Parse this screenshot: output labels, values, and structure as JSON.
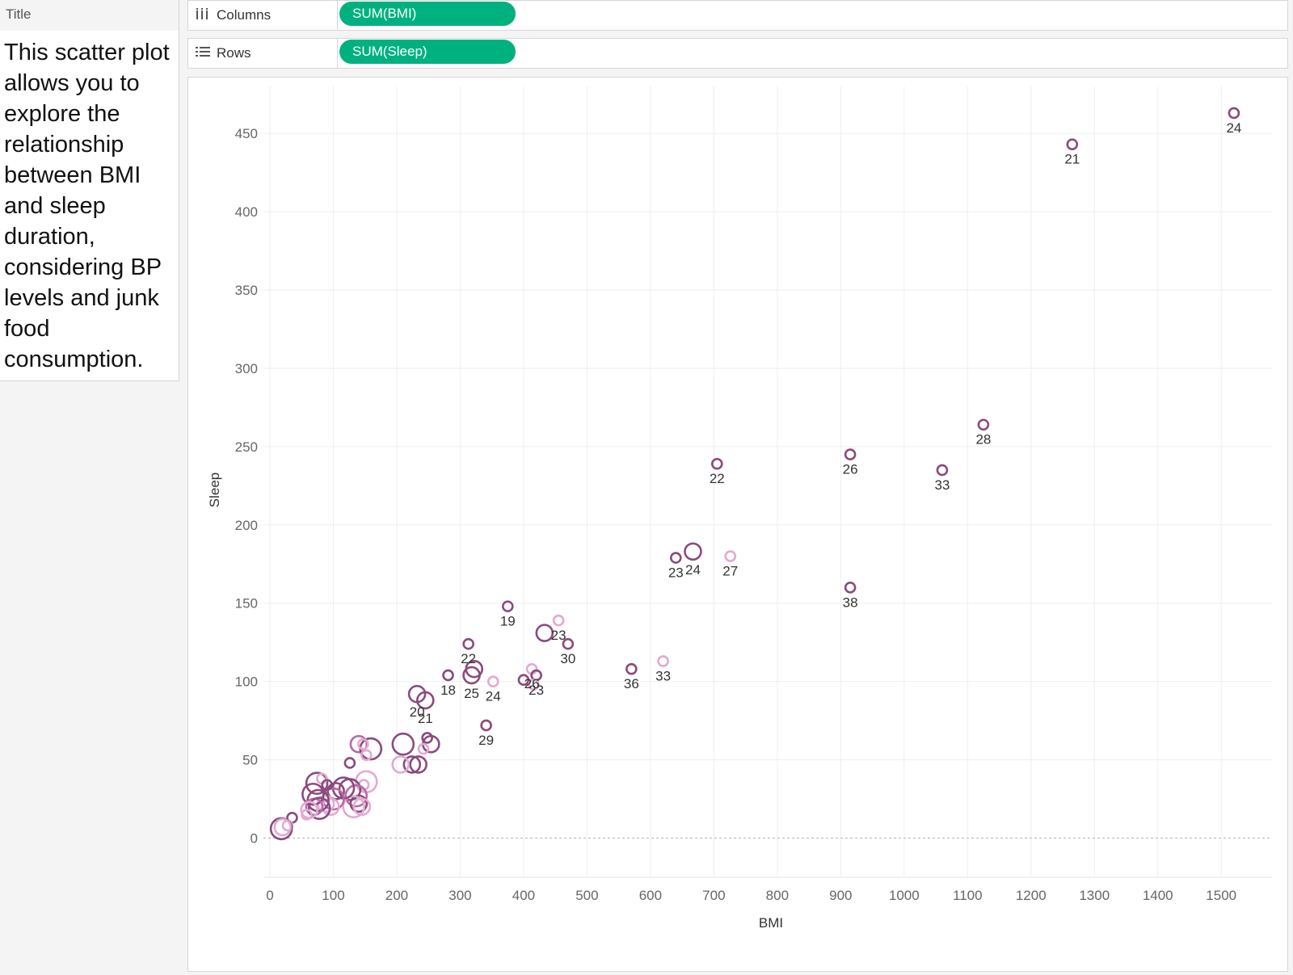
{
  "title_panel": {
    "header": "Title",
    "text": "This scatter plot allows you to explore the relationship between BMI and sleep duration, considering BP levels and junk food consumption."
  },
  "shelves": {
    "columns": {
      "icon": "columns-icon",
      "label": "Columns",
      "pill": "SUM(BMI)"
    },
    "rows": {
      "icon": "rows-icon",
      "label": "Rows",
      "pill": "SUM(Sleep)"
    }
  },
  "colors": {
    "pill": "#00b180",
    "dark_series": "#8a4b7e",
    "mid_series": "#b86aa6",
    "light_series": "#e3a9d2"
  },
  "chart_data": {
    "type": "scatter",
    "xlabel": "BMI",
    "ylabel": "Sleep",
    "xlim": [
      0,
      1580
    ],
    "ylim": [
      -25,
      480
    ],
    "xticks": [
      0,
      100,
      200,
      300,
      400,
      500,
      600,
      700,
      800,
      900,
      1000,
      1100,
      1200,
      1300,
      1400,
      1500
    ],
    "yticks": [
      0,
      50,
      100,
      150,
      200,
      250,
      300,
      350,
      400,
      450
    ],
    "grid": true,
    "marker": "hollow circle",
    "shade_encoding": "color shade (light pink to dark purple) and circle size vary by point",
    "points": [
      {
        "x": 1520,
        "y": 463,
        "label": "24",
        "shade": 2,
        "size": 1
      },
      {
        "x": 1265,
        "y": 443,
        "label": "21",
        "shade": 2,
        "size": 1
      },
      {
        "x": 1125,
        "y": 264,
        "label": "28",
        "shade": 2,
        "size": 1
      },
      {
        "x": 1060,
        "y": 235,
        "label": "33",
        "shade": 2,
        "size": 1
      },
      {
        "x": 915,
        "y": 245,
        "label": "26",
        "shade": 2,
        "size": 1
      },
      {
        "x": 915,
        "y": 160,
        "label": "38",
        "shade": 2,
        "size": 1
      },
      {
        "x": 705,
        "y": 239,
        "label": "22",
        "shade": 2,
        "size": 1
      },
      {
        "x": 640,
        "y": 179,
        "label": "23",
        "shade": 2,
        "size": 1
      },
      {
        "x": 667,
        "y": 183,
        "label": "24",
        "shade": 2,
        "size": 3
      },
      {
        "x": 726,
        "y": 180,
        "label": "27",
        "shade": 0,
        "size": 1
      },
      {
        "x": 570,
        "y": 108,
        "label": "36",
        "shade": 2,
        "size": 1
      },
      {
        "x": 620,
        "y": 113,
        "label": "33",
        "shade": 0,
        "size": 1
      },
      {
        "x": 375,
        "y": 148,
        "label": "19",
        "shade": 2,
        "size": 1
      },
      {
        "x": 455,
        "y": 139,
        "label": "23",
        "shade": 0,
        "size": 1
      },
      {
        "x": 433,
        "y": 131,
        "label": "",
        "shade": 2,
        "size": 3
      },
      {
        "x": 470,
        "y": 124,
        "label": "30",
        "shade": 2,
        "size": 1
      },
      {
        "x": 313,
        "y": 124,
        "label": "22",
        "shade": 2,
        "size": 1
      },
      {
        "x": 322,
        "y": 108,
        "label": "",
        "shade": 2,
        "size": 3
      },
      {
        "x": 318,
        "y": 104,
        "label": "25",
        "shade": 2,
        "size": 3
      },
      {
        "x": 352,
        "y": 100,
        "label": "24",
        "shade": 0,
        "size": 1
      },
      {
        "x": 413,
        "y": 108,
        "label": "26",
        "shade": 0,
        "size": 1
      },
      {
        "x": 420,
        "y": 104,
        "label": "23",
        "shade": 2,
        "size": 1
      },
      {
        "x": 400,
        "y": 101,
        "label": "",
        "shade": 2,
        "size": 1
      },
      {
        "x": 416,
        "y": 98,
        "label": "",
        "shade": 0,
        "size": 1
      },
      {
        "x": 281,
        "y": 104,
        "label": "18",
        "shade": 2,
        "size": 1
      },
      {
        "x": 232,
        "y": 92,
        "label": "20",
        "shade": 2,
        "size": 3
      },
      {
        "x": 245,
        "y": 88,
        "label": "21",
        "shade": 2,
        "size": 3
      },
      {
        "x": 341,
        "y": 72,
        "label": "29",
        "shade": 2,
        "size": 1
      },
      {
        "x": 210,
        "y": 60,
        "label": "",
        "shade": 2,
        "size": 4
      },
      {
        "x": 254,
        "y": 60,
        "label": "",
        "shade": 2,
        "size": 3
      },
      {
        "x": 248,
        "y": 64,
        "label": "",
        "shade": 2,
        "size": 1
      },
      {
        "x": 242,
        "y": 57,
        "label": "",
        "shade": 0,
        "size": 1
      },
      {
        "x": 224,
        "y": 47,
        "label": "",
        "shade": 2,
        "size": 3
      },
      {
        "x": 234,
        "y": 47,
        "label": "",
        "shade": 2,
        "size": 3
      },
      {
        "x": 206,
        "y": 47,
        "label": "",
        "shade": 0,
        "size": 3
      },
      {
        "x": 140,
        "y": 60,
        "label": "",
        "shade": 1,
        "size": 3
      },
      {
        "x": 159,
        "y": 57,
        "label": "",
        "shade": 2,
        "size": 4
      },
      {
        "x": 147,
        "y": 60,
        "label": "",
        "shade": 0,
        "size": 1
      },
      {
        "x": 152,
        "y": 53,
        "label": "",
        "shade": 0,
        "size": 1
      },
      {
        "x": 126,
        "y": 48,
        "label": "",
        "shade": 2,
        "size": 1
      },
      {
        "x": 152,
        "y": 36,
        "label": "",
        "shade": 0,
        "size": 4
      },
      {
        "x": 148,
        "y": 34,
        "label": "",
        "shade": 0,
        "size": 1
      },
      {
        "x": 126,
        "y": 31,
        "label": "",
        "shade": 2,
        "size": 4
      },
      {
        "x": 136,
        "y": 27,
        "label": "",
        "shade": 1,
        "size": 4
      },
      {
        "x": 140,
        "y": 22,
        "label": "",
        "shade": 2,
        "size": 3
      },
      {
        "x": 132,
        "y": 20,
        "label": "",
        "shade": 0,
        "size": 4
      },
      {
        "x": 145,
        "y": 20,
        "label": "",
        "shade": 0,
        "size": 3
      },
      {
        "x": 116,
        "y": 32,
        "label": "",
        "shade": 2,
        "size": 4
      },
      {
        "x": 104,
        "y": 30,
        "label": "",
        "shade": 2,
        "size": 3
      },
      {
        "x": 100,
        "y": 25,
        "label": "",
        "shade": 1,
        "size": 4
      },
      {
        "x": 96,
        "y": 20,
        "label": "",
        "shade": 0,
        "size": 3
      },
      {
        "x": 88,
        "y": 22,
        "label": "",
        "shade": 0,
        "size": 3
      },
      {
        "x": 74,
        "y": 35,
        "label": "",
        "shade": 2,
        "size": 4
      },
      {
        "x": 82,
        "y": 38,
        "label": "",
        "shade": 0,
        "size": 1
      },
      {
        "x": 90,
        "y": 34,
        "label": "",
        "shade": 2,
        "size": 1
      },
      {
        "x": 68,
        "y": 28,
        "label": "",
        "shade": 2,
        "size": 4
      },
      {
        "x": 76,
        "y": 24,
        "label": "",
        "shade": 2,
        "size": 4
      },
      {
        "x": 70,
        "y": 20,
        "label": "",
        "shade": 1,
        "size": 3
      },
      {
        "x": 78,
        "y": 19,
        "label": "",
        "shade": 2,
        "size": 4
      },
      {
        "x": 62,
        "y": 18,
        "label": "",
        "shade": 0,
        "size": 3
      },
      {
        "x": 58,
        "y": 15,
        "label": "",
        "shade": 0,
        "size": 1
      },
      {
        "x": 35,
        "y": 13,
        "label": "",
        "shade": 2,
        "size": 1
      },
      {
        "x": 28,
        "y": 8,
        "label": "",
        "shade": 0,
        "size": 1
      },
      {
        "x": 18,
        "y": 6,
        "label": "",
        "shade": 2,
        "size": 4
      },
      {
        "x": 20,
        "y": 7,
        "label": "",
        "shade": 0,
        "size": 3
      }
    ]
  }
}
